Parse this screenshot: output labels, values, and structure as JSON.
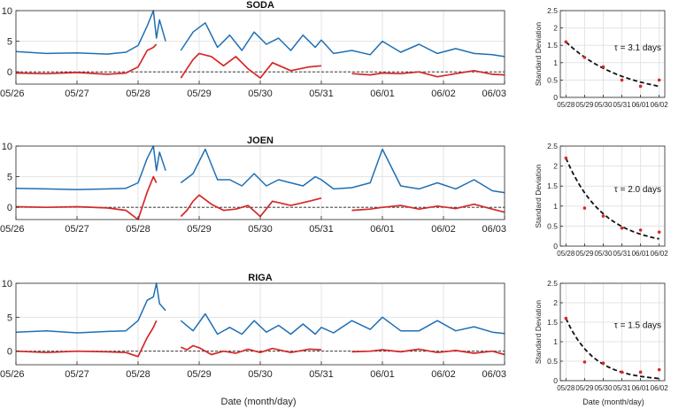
{
  "figure": {
    "xlabel_ts": "Date (month/day)",
    "xlabel_sd": "Date (month/day)"
  },
  "colors": {
    "blue": "#1f6fb4",
    "red": "#d62728",
    "grid": "#e3e3e3",
    "axis": "#262626",
    "fit": "#111111",
    "points": "#d62728"
  },
  "chart_data": [
    {
      "type": "line",
      "title": "SODA",
      "xlabel": "",
      "ylabel": "",
      "xlim": [
        0,
        8
      ],
      "ylim": [
        -2,
        10
      ],
      "yticks": [
        0,
        5,
        10
      ],
      "xticks": [
        0,
        1,
        2,
        3,
        4,
        5,
        6,
        7,
        8
      ],
      "xticklabels": [
        "05/26",
        "05/27",
        "05/28",
        "05/29",
        "05/30",
        "05/31",
        "06/01",
        "06/02",
        "06/03"
      ],
      "zero_line": 0,
      "series": [
        {
          "name": "blue",
          "color": "#1f6fb4",
          "x": [
            0,
            0.5,
            1,
            1.5,
            1.8,
            2.0,
            2.15,
            2.25,
            2.3,
            2.35,
            2.45,
            2.6,
            2.7,
            2.9,
            3.1,
            3.3,
            3.5,
            3.7,
            3.9,
            4.1,
            4.3,
            4.5,
            4.7,
            4.9,
            5.0,
            5.2,
            5.5,
            5.8,
            6.0,
            6.3,
            6.6,
            6.9,
            7.2,
            7.5,
            7.8,
            8.0
          ],
          "y": [
            3.3,
            3.0,
            3.1,
            2.9,
            3.2,
            4.3,
            7.5,
            10.0,
            5.5,
            8.5,
            5.0,
            null,
            3.5,
            6.5,
            8.0,
            4.0,
            6.0,
            3.5,
            6.5,
            4.5,
            5.5,
            3.5,
            6.0,
            4.0,
            5.2,
            3.0,
            3.5,
            2.8,
            5.0,
            3.2,
            4.5,
            3.0,
            3.8,
            3.0,
            2.8,
            2.5
          ]
        },
        {
          "name": "red",
          "color": "#d62728",
          "x": [
            0,
            0.5,
            1,
            1.5,
            1.8,
            2.0,
            2.15,
            2.25,
            2.3,
            2.45,
            2.6,
            2.7,
            2.8,
            2.9,
            3.0,
            3.2,
            3.4,
            3.6,
            3.8,
            4.0,
            4.2,
            4.5,
            4.8,
            5.0,
            5.2,
            5.5,
            5.8,
            6.0,
            6.3,
            6.6,
            6.9,
            7.2,
            7.5,
            7.8,
            8.0
          ],
          "y": [
            -0.2,
            -0.3,
            -0.1,
            -0.4,
            -0.2,
            0.8,
            3.5,
            4.0,
            4.5,
            null,
            null,
            -1.0,
            0.5,
            2.0,
            3.0,
            2.5,
            1.0,
            2.5,
            0.5,
            -1.0,
            1.5,
            0.2,
            0.8,
            1.0,
            null,
            -0.3,
            -0.5,
            -0.2,
            -0.3,
            0.0,
            -0.8,
            -0.3,
            0.2,
            -0.4,
            -0.5
          ]
        }
      ]
    },
    {
      "type": "line",
      "title": "JOEN",
      "xlabel": "",
      "ylabel": "",
      "xlim": [
        0,
        8
      ],
      "ylim": [
        -2,
        10
      ],
      "yticks": [
        0,
        5,
        10
      ],
      "xticks": [
        0,
        1,
        2,
        3,
        4,
        5,
        6,
        7,
        8
      ],
      "xticklabels": [
        "05/26",
        "05/27",
        "05/28",
        "05/29",
        "05/30",
        "05/31",
        "06/01",
        "06/02",
        "06/03"
      ],
      "zero_line": 0,
      "series": [
        {
          "name": "blue",
          "color": "#1f6fb4",
          "x": [
            0,
            0.5,
            1,
            1.5,
            1.8,
            2.0,
            2.15,
            2.25,
            2.3,
            2.35,
            2.45,
            2.6,
            2.7,
            2.9,
            3.1,
            3.3,
            3.5,
            3.7,
            3.9,
            4.1,
            4.3,
            4.5,
            4.7,
            4.9,
            5.0,
            5.2,
            5.5,
            5.8,
            6.0,
            6.3,
            6.6,
            6.9,
            7.2,
            7.5,
            7.8,
            8.0
          ],
          "y": [
            3.1,
            3.0,
            2.9,
            3.0,
            3.1,
            4.0,
            8.0,
            10.0,
            6.0,
            9.0,
            6.0,
            null,
            4.0,
            5.5,
            9.5,
            4.5,
            4.5,
            3.5,
            5.5,
            3.5,
            4.5,
            4.0,
            3.5,
            5.0,
            4.5,
            3.0,
            3.2,
            4.0,
            9.5,
            3.5,
            3.0,
            4.0,
            3.0,
            4.5,
            2.7,
            2.4
          ]
        },
        {
          "name": "red",
          "color": "#d62728",
          "x": [
            0,
            0.5,
            1,
            1.5,
            1.8,
            2.0,
            2.15,
            2.25,
            2.3,
            2.45,
            2.6,
            2.7,
            2.8,
            2.9,
            3.0,
            3.2,
            3.4,
            3.6,
            3.8,
            4.0,
            4.2,
            4.5,
            4.8,
            5.0,
            5.2,
            5.5,
            5.8,
            6.0,
            6.3,
            6.6,
            6.9,
            7.2,
            7.5,
            7.8,
            8.0
          ],
          "y": [
            0.1,
            0.0,
            0.1,
            -0.1,
            -0.5,
            -2.0,
            2.5,
            5.0,
            4.0,
            null,
            null,
            -1.5,
            -0.5,
            1.0,
            2.0,
            0.5,
            -0.5,
            -0.3,
            0.3,
            -1.5,
            1.0,
            0.3,
            1.0,
            1.5,
            null,
            -0.5,
            -0.3,
            0.0,
            0.3,
            -0.3,
            0.2,
            -0.2,
            0.5,
            -0.3,
            -0.8
          ]
        }
      ]
    },
    {
      "type": "line",
      "title": "RIGA",
      "xlabel": "",
      "ylabel": "",
      "xlim": [
        0,
        8
      ],
      "ylim": [
        -2,
        10
      ],
      "yticks": [
        0,
        5,
        10
      ],
      "xticks": [
        0,
        1,
        2,
        3,
        4,
        5,
        6,
        7,
        8
      ],
      "xticklabels": [
        "05/26",
        "05/27",
        "05/28",
        "05/29",
        "05/30",
        "05/31",
        "06/01",
        "06/02",
        "06/03"
      ],
      "zero_line": 0,
      "series": [
        {
          "name": "blue",
          "color": "#1f6fb4",
          "x": [
            0,
            0.5,
            1,
            1.5,
            1.8,
            2.0,
            2.15,
            2.25,
            2.3,
            2.35,
            2.45,
            2.6,
            2.7,
            2.9,
            3.1,
            3.3,
            3.5,
            3.7,
            3.9,
            4.1,
            4.3,
            4.5,
            4.7,
            4.9,
            5.0,
            5.2,
            5.5,
            5.8,
            6.0,
            6.3,
            6.6,
            6.9,
            7.2,
            7.5,
            7.8,
            8.0
          ],
          "y": [
            2.8,
            3.0,
            2.7,
            2.9,
            3.0,
            4.5,
            7.5,
            8.0,
            10.0,
            7.0,
            6.0,
            null,
            4.5,
            3.0,
            5.5,
            2.5,
            3.5,
            2.5,
            4.5,
            2.8,
            3.8,
            2.5,
            4.0,
            2.5,
            3.5,
            2.7,
            4.5,
            3.2,
            5.0,
            3.0,
            3.0,
            4.5,
            3.0,
            3.6,
            2.8,
            2.6
          ]
        },
        {
          "name": "red",
          "color": "#d62728",
          "x": [
            0,
            0.5,
            1,
            1.5,
            1.8,
            2.0,
            2.15,
            2.25,
            2.3,
            2.45,
            2.6,
            2.7,
            2.8,
            2.9,
            3.0,
            3.2,
            3.4,
            3.6,
            3.8,
            4.0,
            4.2,
            4.5,
            4.8,
            5.0,
            5.2,
            5.5,
            5.8,
            6.0,
            6.3,
            6.6,
            6.9,
            7.2,
            7.5,
            7.8,
            8.0
          ],
          "y": [
            0.0,
            -0.2,
            0.0,
            -0.1,
            -0.2,
            -0.8,
            2.0,
            3.5,
            4.5,
            null,
            null,
            0.6,
            0.2,
            0.8,
            0.5,
            -0.5,
            0.0,
            -0.3,
            0.3,
            -0.2,
            0.4,
            -0.2,
            0.3,
            0.2,
            null,
            -0.1,
            0.0,
            0.2,
            -0.1,
            0.3,
            -0.2,
            0.1,
            -0.3,
            0.0,
            -0.5
          ]
        }
      ]
    },
    {
      "type": "scatter",
      "title": "",
      "xlabel": "",
      "ylabel": "Standard Deviation",
      "xlim": [
        -0.3,
        5.3
      ],
      "ylim": [
        0,
        2.5
      ],
      "yticks": [
        0,
        0.5,
        1,
        1.5,
        2,
        2.5
      ],
      "xticklabels": [
        "05/28",
        "05/29",
        "05/30",
        "05/31",
        "06/01",
        "06/02"
      ],
      "annotation": "τ = 3.1 days",
      "points": {
        "x": [
          0,
          1,
          2,
          3,
          4,
          5
        ],
        "y": [
          1.6,
          1.15,
          0.88,
          0.5,
          0.32,
          0.5
        ]
      },
      "fit": {
        "a": 1.6,
        "tau": 3.1,
        "x0": 0,
        "x1": 5
      }
    },
    {
      "type": "scatter",
      "title": "",
      "xlabel": "",
      "ylabel": "Standard Deviation",
      "xlim": [
        -0.3,
        5.3
      ],
      "ylim": [
        0,
        2.5
      ],
      "yticks": [
        0,
        0.5,
        1,
        1.5,
        2,
        2.5
      ],
      "xticklabels": [
        "05/28",
        "05/29",
        "05/30",
        "05/31",
        "06/01",
        "06/02"
      ],
      "annotation": "τ = 2.0 days",
      "points": {
        "x": [
          0,
          1,
          2,
          3,
          4,
          5
        ],
        "y": [
          2.2,
          0.95,
          0.75,
          0.45,
          0.4,
          0.35
        ]
      },
      "fit": {
        "a": 2.2,
        "tau": 2.0,
        "x0": 0,
        "x1": 5
      }
    },
    {
      "type": "scatter",
      "title": "",
      "xlabel": "",
      "ylabel": "Standard Deviation",
      "xlim": [
        -0.3,
        5.3
      ],
      "ylim": [
        0,
        2.5
      ],
      "yticks": [
        0,
        0.5,
        1,
        1.5,
        2,
        2.5
      ],
      "xticklabels": [
        "05/28",
        "05/29",
        "05/30",
        "05/31",
        "06/01",
        "06/02"
      ],
      "annotation": "τ = 1.5 days",
      "points": {
        "x": [
          0,
          1,
          2,
          3,
          4,
          5
        ],
        "y": [
          1.6,
          0.48,
          0.45,
          0.22,
          0.22,
          0.28
        ]
      },
      "fit": {
        "a": 1.6,
        "tau": 1.5,
        "x0": 0,
        "x1": 5
      }
    }
  ]
}
